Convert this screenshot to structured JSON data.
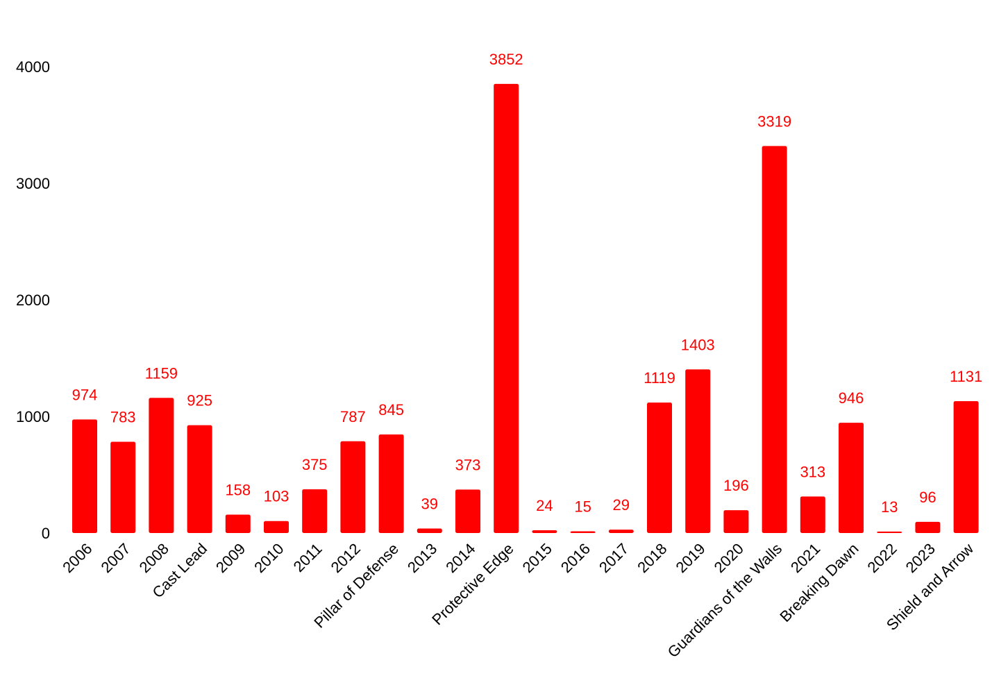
{
  "chart_data": {
    "type": "bar",
    "title": "",
    "xlabel": "",
    "ylabel": "",
    "ylim": [
      0,
      4000
    ],
    "yticks": [
      0,
      1000,
      2000,
      3000,
      4000
    ],
    "grid": false,
    "bar_color": "#ff0000",
    "label_color": "#ff0000",
    "categories": [
      "2006",
      "2007",
      "2008",
      "Cast Lead",
      "2009",
      "2010",
      "2011",
      "2012",
      "Pillar of Defense",
      "2013",
      "2014",
      "Protective Edge",
      "2015",
      "2016",
      "2017",
      "2018",
      "2019",
      "2020",
      "Guardians of the Walls",
      "2021",
      "Breaking Dawn",
      "2022",
      "2023",
      "Shield and Arrow"
    ],
    "values": [
      974,
      783,
      1159,
      925,
      158,
      103,
      375,
      787,
      845,
      39,
      373,
      3852,
      24,
      15,
      29,
      1119,
      1403,
      196,
      3319,
      313,
      946,
      13,
      96,
      1131
    ],
    "value_labels": [
      "974",
      "783",
      "1159",
      "925",
      "158",
      "103",
      "375",
      "787",
      "845",
      "39",
      "373",
      "3852",
      "24",
      "15",
      "29",
      "1119",
      "1403",
      "196",
      "3319",
      "313",
      "946",
      "13",
      "96",
      "1131"
    ]
  }
}
